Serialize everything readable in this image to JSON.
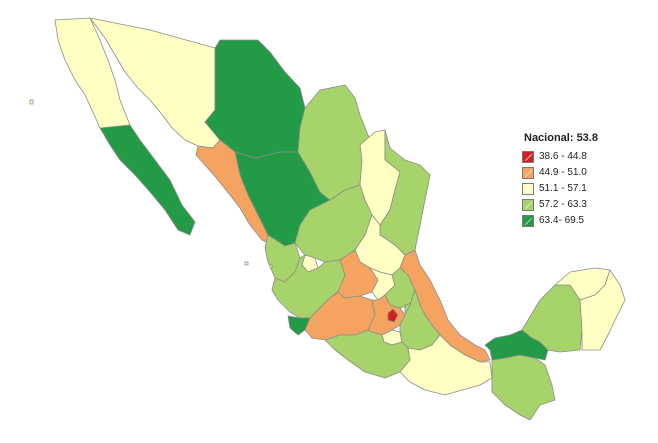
{
  "map": {
    "legend": {
      "title": "Nacional: 53.8",
      "items": [
        {
          "label": "38.6 - 44.8",
          "color": "#d32020",
          "class": "c1"
        },
        {
          "label": "44.9 - 51.0",
          "color": "#f4a460",
          "class": "c2"
        },
        {
          "label": "51.1 - 57.1",
          "color": "#ffffc4",
          "class": "c3"
        },
        {
          "label": "57.2 - 63.3",
          "color": "#a6d46a",
          "class": "c4"
        },
        {
          "label": "63.4- 69.5",
          "color": "#239a45",
          "class": "c5"
        }
      ]
    },
    "regions": [
      {
        "name": "Baja California",
        "class": "c3"
      },
      {
        "name": "Baja California Sur",
        "class": "c5"
      },
      {
        "name": "Sonora",
        "class": "c3"
      },
      {
        "name": "Chihuahua",
        "class": "c5"
      },
      {
        "name": "Durango",
        "class": "c5"
      },
      {
        "name": "Sinaloa",
        "class": "c2"
      },
      {
        "name": "Coahuila",
        "class": "c4"
      },
      {
        "name": "Nuevo León",
        "class": "c3"
      },
      {
        "name": "Tamaulipas",
        "class": "c4"
      },
      {
        "name": "Zacatecas",
        "class": "c4"
      },
      {
        "name": "Nayarit",
        "class": "c4"
      },
      {
        "name": "Jalisco",
        "class": "c3"
      },
      {
        "name": "Aguascalientes",
        "class": "c3"
      },
      {
        "name": "San Luis Potosí",
        "class": "c4"
      },
      {
        "name": "Guanajuato",
        "class": "c2"
      },
      {
        "name": "Querétaro",
        "class": "c3"
      },
      {
        "name": "Hidalgo",
        "class": "c4"
      },
      {
        "name": "Veracruz",
        "class": "c2"
      },
      {
        "name": "Michoacán",
        "class": "c2"
      },
      {
        "name": "Colima",
        "class": "c5"
      },
      {
        "name": "Estado de México",
        "class": "c2"
      },
      {
        "name": "Ciudad de México",
        "class": "c1"
      },
      {
        "name": "Morelos",
        "class": "c3"
      },
      {
        "name": "Tlaxcala",
        "class": "c4"
      },
      {
        "name": "Puebla",
        "class": "c4"
      },
      {
        "name": "Guerrero",
        "class": "c4"
      },
      {
        "name": "Oaxaca",
        "class": "c3"
      },
      {
        "name": "Chiapas",
        "class": "c4"
      },
      {
        "name": "Tabasco",
        "class": "c5"
      },
      {
        "name": "Campeche",
        "class": "c4"
      },
      {
        "name": "Yucatán",
        "class": "c3"
      },
      {
        "name": "Quintana Roo",
        "class": "c3"
      }
    ]
  }
}
